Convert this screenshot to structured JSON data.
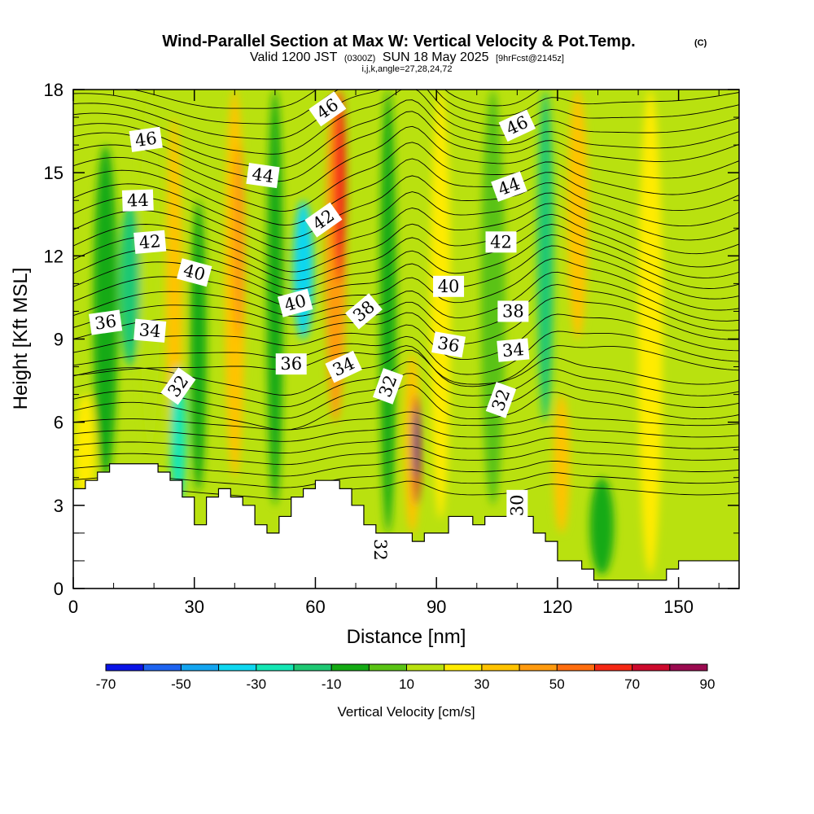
{
  "chart_data": {
    "type": "heatmap",
    "title": "Wind-Parallel Section at Max W: Vertical Velocity & Pot.Temp.",
    "title_mark": "(C)",
    "subtitle": {
      "valid_prefix": "Valid 1200 JST",
      "utc": "(0300Z)",
      "date": "SUN 18 May 2025",
      "forecast": "[9hrFcst@2145z]"
    },
    "subtitle2": "i,j,k,angle=27,28,24,72",
    "xlabel": "Distance [nm]",
    "ylabel": "Height [Kft MSL]",
    "xlim": [
      0,
      165
    ],
    "ylim": [
      0,
      18
    ],
    "x_ticks": [
      "0",
      "30",
      "60",
      "90",
      "120",
      "150"
    ],
    "x_tick_values": [
      0,
      30,
      60,
      90,
      120,
      150
    ],
    "y_ticks": [
      "0",
      "3",
      "6",
      "9",
      "12",
      "15",
      "18"
    ],
    "y_tick_values": [
      0,
      3,
      6,
      9,
      12,
      15,
      18
    ],
    "colorbar": {
      "label": "Vertical Velocity [cm/s]",
      "levels": [
        -70,
        -60,
        -50,
        -40,
        -30,
        -20,
        -10,
        0,
        10,
        20,
        30,
        40,
        50,
        60,
        70,
        80,
        90
      ],
      "tick_labels": [
        "-70",
        "-50",
        "-30",
        "-10",
        "10",
        "30",
        "50",
        "70",
        "90"
      ],
      "colors": [
        "#0a14e6",
        "#1e64f0",
        "#14a5f0",
        "#0fd7f0",
        "#14e6b4",
        "#1ec873",
        "#14aa14",
        "#5ac314",
        "#b9e10f",
        "#ffeb00",
        "#ffc300",
        "#ff9b0f",
        "#ff6e0f",
        "#f52814",
        "#cd0a2d",
        "#9b0a50",
        "#5a0a8c"
      ]
    },
    "terrain_profile": {
      "x": [
        0,
        3,
        6,
        9,
        12,
        15,
        18,
        21,
        24,
        27,
        30,
        33,
        36,
        39,
        42,
        45,
        48,
        51,
        54,
        57,
        60,
        63,
        66,
        69,
        72,
        75,
        78,
        81,
        84,
        87,
        90,
        93,
        96,
        99,
        102,
        105,
        108,
        111,
        114,
        117,
        120,
        123,
        126,
        129,
        132,
        135,
        138,
        141,
        144,
        147,
        150,
        153,
        156,
        159,
        162,
        165
      ],
      "height_kft": [
        3.6,
        3.9,
        4.2,
        4.5,
        4.5,
        4.5,
        4.5,
        4.2,
        3.9,
        3.3,
        2.3,
        3.3,
        3.6,
        3.3,
        3.0,
        2.3,
        2.0,
        2.6,
        3.3,
        3.6,
        3.9,
        3.9,
        3.6,
        3.0,
        2.3,
        2.0,
        2.0,
        2.0,
        1.7,
        2.0,
        2.0,
        2.6,
        2.6,
        2.3,
        2.6,
        2.6,
        2.6,
        2.6,
        2.0,
        1.7,
        1.0,
        1.0,
        0.7,
        0.3,
        0.3,
        0.3,
        0.3,
        0.3,
        0.3,
        0.7,
        1.0,
        1.0,
        1.0,
        1.0,
        1.0,
        1.0
      ]
    },
    "vertical_velocity_bands_cm_s": [
      {
        "x": 3,
        "w": 5,
        "value": 20,
        "ybot": 3.0,
        "ytop": 7.0
      },
      {
        "x": 8,
        "w": 6,
        "value": -10,
        "ybot": 4.0,
        "ytop": 16.0
      },
      {
        "x": 14,
        "w": 5,
        "value": -20,
        "ybot": 8.0,
        "ytop": 14.0
      },
      {
        "x": 19,
        "w": 5,
        "value": 10,
        "ybot": 5.0,
        "ytop": 18.0
      },
      {
        "x": 25,
        "w": 4,
        "value": 30,
        "ybot": 4.0,
        "ytop": 17.0
      },
      {
        "x": 26,
        "w": 4,
        "value": -30,
        "ybot": 3.0,
        "ytop": 8.0
      },
      {
        "x": 31,
        "w": 4,
        "value": -10,
        "ybot": 3.5,
        "ytop": 14.0
      },
      {
        "x": 40,
        "w": 5,
        "value": 30,
        "ybot": 4.0,
        "ytop": 18.0
      },
      {
        "x": 41,
        "w": 3,
        "value": 40,
        "ybot": 9.0,
        "ytop": 16.0
      },
      {
        "x": 50,
        "w": 4,
        "value": -10,
        "ybot": 3.0,
        "ytop": 18.0
      },
      {
        "x": 57,
        "w": 5,
        "value": -40,
        "ybot": 9.0,
        "ytop": 14.0
      },
      {
        "x": 65,
        "w": 5,
        "value": 40,
        "ybot": 6.0,
        "ytop": 18.0
      },
      {
        "x": 66,
        "w": 3,
        "value": 60,
        "ybot": 11.0,
        "ytop": 18.0
      },
      {
        "x": 78,
        "w": 4,
        "value": -10,
        "ybot": 2.0,
        "ytop": 18.0
      },
      {
        "x": 84,
        "w": 4,
        "value": 30,
        "ybot": 2.0,
        "ytop": 8.5
      },
      {
        "x": 85,
        "w": 2,
        "value": 70,
        "ybot": 3.0,
        "ytop": 7.0
      },
      {
        "x": 85,
        "w": 1.5,
        "value": 90,
        "ybot": 4.0,
        "ytop": 6.5
      },
      {
        "x": 91,
        "w": 5,
        "value": 20,
        "ybot": 2.5,
        "ytop": 18.0
      },
      {
        "x": 104,
        "w": 6,
        "value": 0,
        "ybot": 3.0,
        "ytop": 18.0
      },
      {
        "x": 117,
        "w": 4,
        "value": -20,
        "ybot": 6.0,
        "ytop": 18.0
      },
      {
        "x": 121,
        "w": 4,
        "value": 30,
        "ybot": 2.0,
        "ytop": 7.0
      },
      {
        "x": 125,
        "w": 5,
        "value": 30,
        "ybot": 9.0,
        "ytop": 18.0
      },
      {
        "x": 131,
        "w": 6,
        "value": -10,
        "ybot": 0.5,
        "ytop": 4.0
      },
      {
        "x": 143,
        "w": 6,
        "value": 20,
        "ybot": 0.5,
        "ytop": 18.0
      }
    ],
    "pot_temp_contours_C": {
      "levels": [
        30,
        32,
        34,
        36,
        38,
        40,
        42,
        44,
        46
      ],
      "base_height_kft": [
        3.5,
        6.0,
        8.5,
        9.5,
        10.3,
        11.2,
        12.4,
        13.8,
        15.8
      ],
      "labels": [
        {
          "text": "36",
          "x": 8,
          "y": 9.6,
          "angle": -8
        },
        {
          "text": "34",
          "x": 19,
          "y": 9.3,
          "angle": 5
        },
        {
          "text": "32",
          "x": 26,
          "y": 7.3,
          "angle": -55
        },
        {
          "text": "40",
          "x": 30,
          "y": 11.4,
          "angle": 15
        },
        {
          "text": "42",
          "x": 19,
          "y": 12.5,
          "angle": -5
        },
        {
          "text": "44",
          "x": 16,
          "y": 14.0,
          "angle": -2
        },
        {
          "text": "46",
          "x": 18,
          "y": 16.2,
          "angle": -8
        },
        {
          "text": "44",
          "x": 47,
          "y": 14.9,
          "angle": 8
        },
        {
          "text": "46",
          "x": 63,
          "y": 17.3,
          "angle": -35
        },
        {
          "text": "42",
          "x": 62,
          "y": 13.3,
          "angle": -35
        },
        {
          "text": "40",
          "x": 55,
          "y": 10.3,
          "angle": -15
        },
        {
          "text": "36",
          "x": 54,
          "y": 8.1,
          "angle": 0
        },
        {
          "text": "34",
          "x": 67,
          "y": 8.0,
          "angle": -25
        },
        {
          "text": "38",
          "x": 72,
          "y": 10.0,
          "angle": -40
        },
        {
          "text": "32",
          "x": 78,
          "y": 7.3,
          "angle": -70
        },
        {
          "text": "32",
          "x": 76,
          "y": 1.4,
          "angle": 90
        },
        {
          "text": "40",
          "x": 93,
          "y": 10.9,
          "angle": 0
        },
        {
          "text": "42",
          "x": 106,
          "y": 12.5,
          "angle": 0
        },
        {
          "text": "46",
          "x": 110,
          "y": 16.7,
          "angle": -25
        },
        {
          "text": "44",
          "x": 108,
          "y": 14.5,
          "angle": -20
        },
        {
          "text": "36",
          "x": 93,
          "y": 8.8,
          "angle": 10
        },
        {
          "text": "38",
          "x": 109,
          "y": 10.0,
          "angle": 0
        },
        {
          "text": "34",
          "x": 109,
          "y": 8.6,
          "angle": -5
        },
        {
          "text": "32",
          "x": 106,
          "y": 6.8,
          "angle": -70
        },
        {
          "text": "30",
          "x": 110,
          "y": 3.0,
          "angle": -90
        }
      ]
    },
    "grid": false,
    "legend": "bottom colorbar"
  }
}
